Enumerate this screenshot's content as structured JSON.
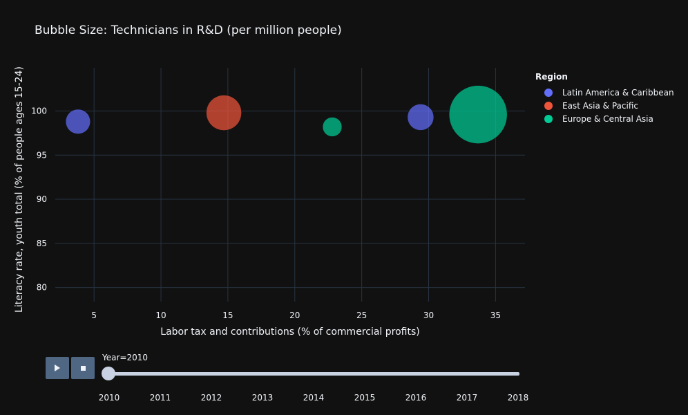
{
  "chart_data": {
    "type": "scatter",
    "title": "Bubble Size: Technicians in R&D (per million people)",
    "xlabel": "Labor tax and contributions (% of commercial profits)",
    "ylabel": "Literacy rate, youth total (% of people ages 15-24)",
    "xlim": [
      2.1,
      37.2
    ],
    "ylim": [
      78.4,
      104.9
    ],
    "xticks": [
      5,
      10,
      15,
      20,
      25,
      30,
      35
    ],
    "yticks": [
      80,
      85,
      90,
      95,
      100
    ],
    "grid": true,
    "legend": {
      "title": "Region",
      "position": "right"
    },
    "series": [
      {
        "name": "Latin America & Caribbean",
        "color": "#636efa",
        "points": [
          {
            "x": 3.8,
            "y": 98.8,
            "size": 180
          },
          {
            "x": 29.4,
            "y": 99.3,
            "size": 205
          }
        ]
      },
      {
        "name": "East Asia & Pacific",
        "color": "#ef553b",
        "points": [
          {
            "x": 14.7,
            "y": 99.8,
            "size": 370
          }
        ]
      },
      {
        "name": "Europe & Central Asia",
        "color": "#00cc96",
        "points": [
          {
            "x": 22.8,
            "y": 98.2,
            "size": 110
          },
          {
            "x": 33.7,
            "y": 99.6,
            "size": 1000
          }
        ]
      }
    ]
  },
  "slider": {
    "label": "Year=2010",
    "value": "2010",
    "years": [
      "2010",
      "2011",
      "2012",
      "2013",
      "2014",
      "2015",
      "2016",
      "2017",
      "2018"
    ]
  },
  "controls": {
    "play_icon": "play-icon",
    "stop_icon": "stop-icon"
  }
}
